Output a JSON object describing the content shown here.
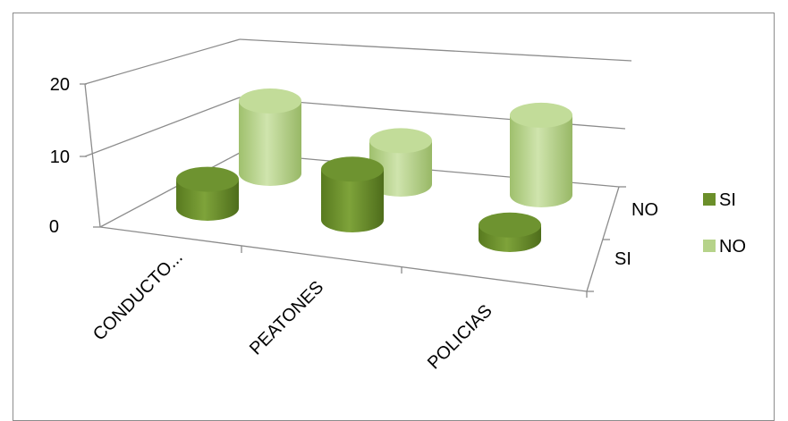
{
  "chart_data": {
    "type": "bar",
    "subtype": "3d-cylinder",
    "title": "",
    "xlabel": "",
    "ylabel": "",
    "categories": [
      "CONDUCTO...",
      "PEATONES",
      "POLICIAS"
    ],
    "depth_categories": [
      "SI",
      "NO"
    ],
    "series": [
      {
        "name": "SI",
        "values": [
          4,
          7,
          2
        ],
        "color": "#6b8f2a"
      },
      {
        "name": "NO",
        "values": [
          10,
          6,
          11
        ],
        "color": "#b6d38a"
      }
    ],
    "ylim": [
      0,
      20
    ],
    "yticks": [
      "0",
      "10",
      "20"
    ],
    "grid": true,
    "legend": "right"
  }
}
